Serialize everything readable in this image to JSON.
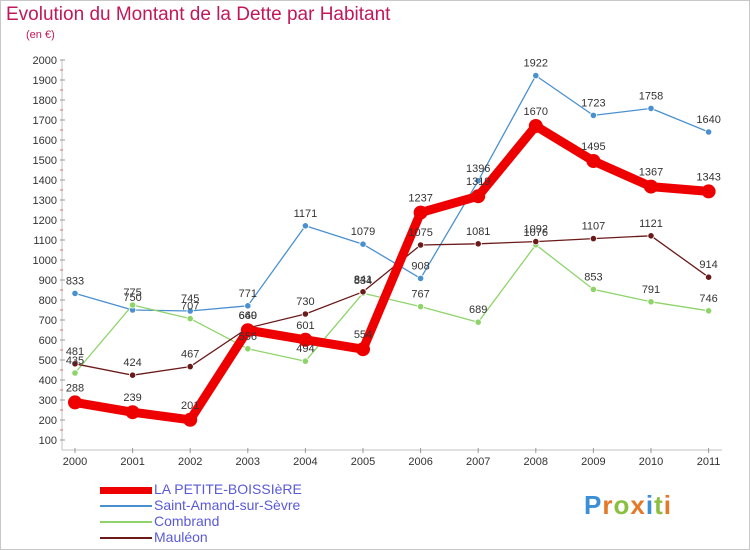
{
  "title": "Evolution du Montant de la Dette par Habitant",
  "subtitle": "(en €)",
  "logo": {
    "letters": [
      "P",
      "r",
      "o",
      "x",
      "i",
      "t",
      "i"
    ],
    "colors": [
      "#3a8fd6",
      "#e6782a",
      "#8cbf3f",
      "#e6782a",
      "#3a8fd6",
      "#8cbf3f",
      "#e6782a"
    ]
  },
  "chart_data": {
    "type": "line",
    "x": [
      "2000",
      "2001",
      "2002",
      "2003",
      "2004",
      "2005",
      "2006",
      "2007",
      "2008",
      "2009",
      "2010",
      "2011"
    ],
    "yticks": [
      "100",
      "200",
      "300",
      "400",
      "500",
      "600",
      "700",
      "800",
      "900",
      "1000",
      "1100",
      "1200",
      "1300",
      "1400",
      "1500",
      "1600",
      "1700",
      "1800",
      "1900",
      "2000"
    ],
    "ylim": [
      100,
      2000
    ],
    "grid": false,
    "legend_position": "bottom-left",
    "series": [
      {
        "name": "LA PETITE-BOISSIèRE",
        "color": "#ee0000",
        "values": [
          288,
          239,
          201,
          649,
          601,
          554,
          1237,
          1319,
          1670,
          1495,
          1367,
          1343
        ],
        "labels": [
          "288",
          "239",
          "201",
          "649",
          "601",
          "554",
          "1237",
          "1319",
          "1670",
          "1495",
          "1367",
          "1343"
        ]
      },
      {
        "name": "Saint-Amand-sur-Sèvre",
        "color": "#4a90d0",
        "values": [
          833,
          750,
          745,
          771,
          1171,
          1079,
          908,
          1396,
          1922,
          1723,
          1758,
          1640
        ],
        "labels": [
          "833",
          "750",
          "745",
          "771",
          "1171",
          "1079",
          "908",
          "1396",
          "1922",
          "1723",
          "1758",
          "1640"
        ]
      },
      {
        "name": "Combrand",
        "color": "#8ed46a",
        "values": [
          435,
          775,
          707,
          556,
          494,
          834,
          767,
          689,
          1076,
          853,
          791,
          746
        ],
        "labels": [
          "435",
          "775",
          "707",
          "556",
          "494",
          "834",
          "767",
          "689",
          "1076",
          "853",
          "791",
          "746"
        ]
      },
      {
        "name": "Mauléon",
        "color": "#6b1a1a",
        "values": [
          481,
          424,
          467,
          660,
          730,
          841,
          1075,
          1081,
          1092,
          1107,
          1121,
          914
        ],
        "labels": [
          "481",
          "424",
          "467",
          "660",
          "730",
          "841",
          "1075",
          "1081",
          "1092",
          "1107",
          "1121",
          "914"
        ]
      }
    ]
  }
}
